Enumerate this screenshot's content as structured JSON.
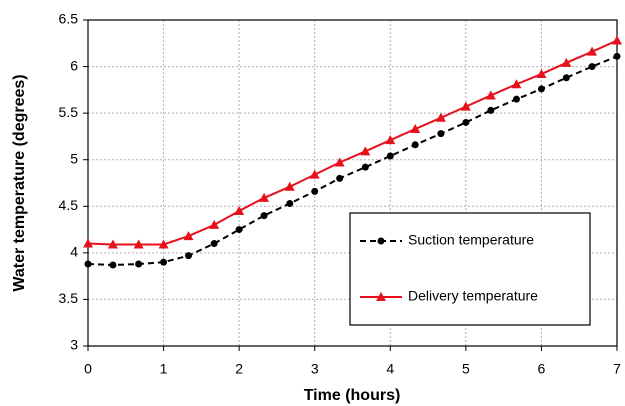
{
  "chart_data": {
    "type": "line",
    "xlabel": "Time (hours)",
    "ylabel": "Water temperature (degrees)",
    "x": [
      0,
      0.33,
      0.67,
      1,
      1.33,
      1.67,
      2,
      2.33,
      2.67,
      3,
      3.33,
      3.67,
      4,
      4.33,
      4.67,
      5,
      5.33,
      5.67,
      6,
      6.33,
      6.67,
      7
    ],
    "series": [
      {
        "name": "Suction temperature",
        "color": "#000000",
        "marker": "circle",
        "dashed": true,
        "values": [
          3.88,
          3.87,
          3.88,
          3.9,
          3.97,
          4.1,
          4.25,
          4.4,
          4.53,
          4.66,
          4.8,
          4.92,
          5.04,
          5.16,
          5.28,
          5.4,
          5.53,
          5.65,
          5.76,
          5.88,
          6.0,
          6.11
        ]
      },
      {
        "name": "Delivery temperature",
        "color": "#e8101a",
        "marker": "triangle",
        "dashed": false,
        "values": [
          4.1,
          4.09,
          4.09,
          4.09,
          4.18,
          4.3,
          4.45,
          4.59,
          4.71,
          4.84,
          4.97,
          5.09,
          5.21,
          5.33,
          5.45,
          5.57,
          5.69,
          5.81,
          5.92,
          6.04,
          6.16,
          6.28
        ]
      }
    ],
    "xlim": [
      0,
      7
    ],
    "xticks": [
      0,
      1,
      2,
      3,
      4,
      5,
      6,
      7
    ],
    "ylim": [
      3,
      6.5
    ],
    "yticks": [
      3,
      3.5,
      4,
      4.5,
      5,
      5.5,
      6,
      6.5
    ],
    "grid": true,
    "legend": "lower right"
  }
}
